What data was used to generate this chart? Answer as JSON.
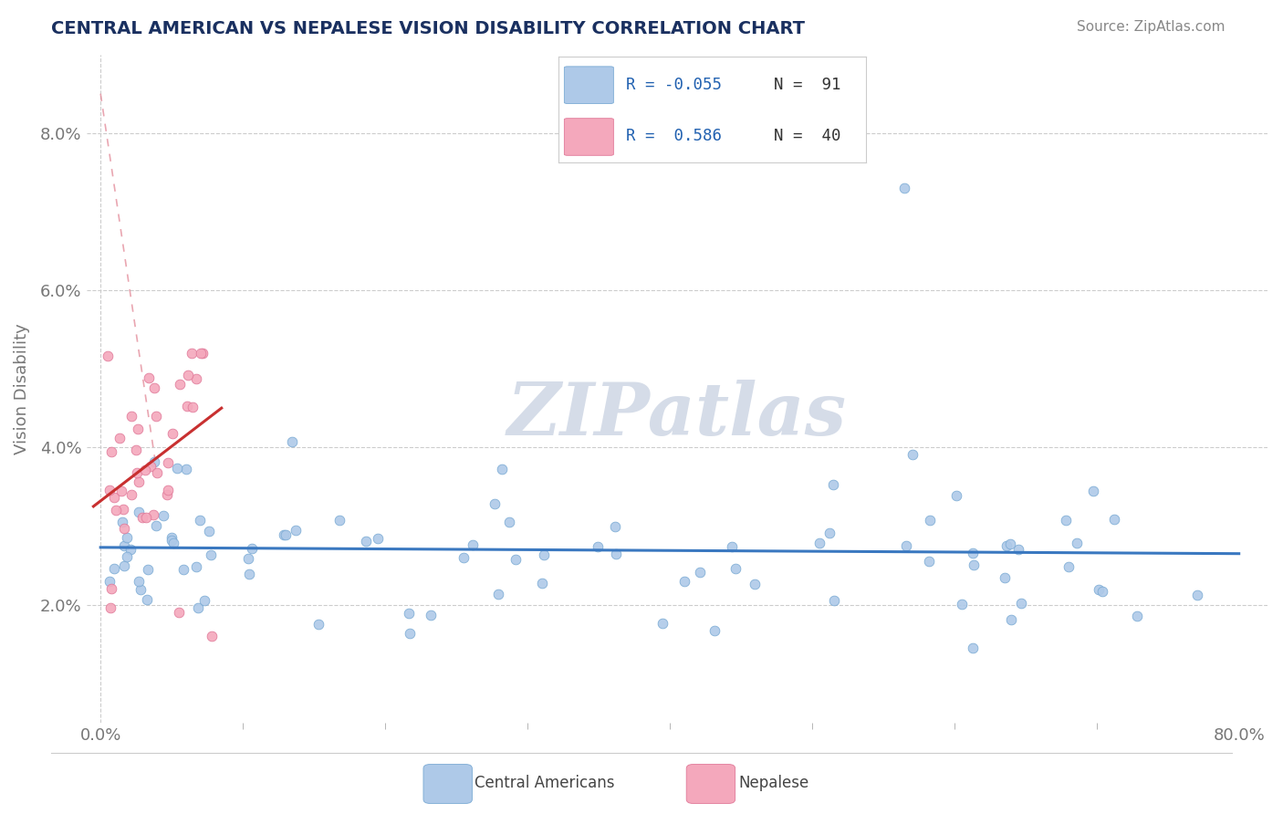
{
  "title": "CENTRAL AMERICAN VS NEPALESE VISION DISABILITY CORRELATION CHART",
  "source": "Source: ZipAtlas.com",
  "ylabel": "Vision Disability",
  "xlim": [
    -0.01,
    0.82
  ],
  "ylim": [
    0.005,
    0.09
  ],
  "yticks": [
    0.02,
    0.04,
    0.06,
    0.08
  ],
  "ytick_labels": [
    "2.0%",
    "4.0%",
    "6.0%",
    "8.0%"
  ],
  "xtick_vals": [
    0.0,
    0.8
  ],
  "xtick_labels": [
    "0.0%",
    "80.0%"
  ],
  "legend_r1": "R = -0.055",
  "legend_n1": "N =  91",
  "legend_r2": "R =  0.586",
  "legend_n2": "N =  40",
  "blue_fill": "#aec9e8",
  "blue_edge": "#7aaad4",
  "pink_fill": "#f4a8bc",
  "pink_edge": "#e07898",
  "blue_line": "#3a78c0",
  "pink_line": "#c83030",
  "pink_dash_line": "#e08090",
  "background_color": "#ffffff",
  "watermark_color": "#d5dce8",
  "title_color": "#1a3060",
  "source_color": "#888888",
  "tick_color": "#777777",
  "grid_color": "#cccccc",
  "r_color": "#2060b0",
  "n_color": "#333333"
}
